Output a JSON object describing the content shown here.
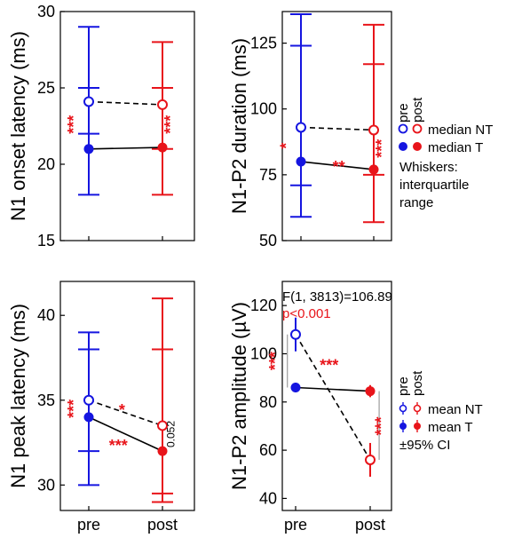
{
  "colors": {
    "pre": "#1515e0",
    "post": "#e8141a",
    "axis": "#000000",
    "significance": "#e8141a"
  },
  "chart_data": [
    {
      "id": "onset",
      "type": "line",
      "ylabel": "N1 onset latency (ms)",
      "ylim": [
        15,
        30
      ],
      "yticks": [
        15,
        20,
        25,
        30
      ],
      "categories": [
        "pre",
        "post"
      ],
      "show_xticklabels": false,
      "series": [
        {
          "name": "median NT",
          "values": [
            24.1,
            23.9
          ],
          "line": "dashed",
          "marker": "open"
        },
        {
          "name": "median T",
          "values": [
            21.0,
            21.1
          ],
          "line": "solid",
          "marker": "filled"
        }
      ],
      "whiskers": [
        {
          "cat": 0,
          "upper": [
            25.0,
            29.0
          ],
          "lower": [
            22.0,
            18.0
          ]
        },
        {
          "cat": 1,
          "upper": [
            25.0,
            28.0
          ],
          "lower": [
            21.0,
            18.0
          ]
        }
      ],
      "annotations": [
        {
          "text": "***",
          "x": -0.13,
          "y": 22.6,
          "rotate": -90,
          "size": 18
        },
        {
          "text": "***",
          "x": 1.18,
          "y": 22.6,
          "rotate": -90,
          "size": 18
        }
      ]
    },
    {
      "id": "duration",
      "type": "line",
      "ylabel": "N1-P2 duration (ms)",
      "ylim": [
        50,
        137
      ],
      "yticks": [
        50,
        75,
        100,
        125
      ],
      "categories": [
        "pre",
        "post"
      ],
      "show_xticklabels": false,
      "series": [
        {
          "name": "median NT",
          "values": [
            93,
            92
          ],
          "line": "dashed",
          "marker": "open"
        },
        {
          "name": "median T",
          "values": [
            80,
            77
          ],
          "line": "solid",
          "marker": "filled"
        }
      ],
      "whiskers": [
        {
          "cat": 0,
          "upper": [
            124,
            136
          ],
          "lower": [
            71,
            59
          ]
        },
        {
          "cat": 1,
          "upper": [
            117,
            132
          ],
          "lower": [
            75,
            57
          ]
        }
      ],
      "annotations": [
        {
          "text": "*",
          "x": -0.13,
          "y": 86,
          "rotate": -90,
          "size": 18
        },
        {
          "text": "**",
          "x": 0.52,
          "y": 76,
          "rotate": 0,
          "size": 18
        },
        {
          "text": "***",
          "x": 1.18,
          "y": 85,
          "rotate": -90,
          "size": 18
        }
      ]
    },
    {
      "id": "peak",
      "type": "line",
      "ylabel": "N1 peak latency (ms)",
      "ylim": [
        28.5,
        42
      ],
      "yticks": [
        30,
        35,
        40
      ],
      "categories": [
        "pre",
        "post"
      ],
      "show_xticklabels": true,
      "series": [
        {
          "name": "median NT",
          "values": [
            35.0,
            33.5
          ],
          "line": "dashed",
          "marker": "open"
        },
        {
          "name": "median T",
          "values": [
            34.0,
            32.0
          ],
          "line": "solid",
          "marker": "filled"
        }
      ],
      "whiskers": [
        {
          "cat": 0,
          "upper": [
            38.0,
            39.0
          ],
          "lower": [
            32.0,
            30.0
          ]
        },
        {
          "cat": 1,
          "upper": [
            38.0,
            41.0
          ],
          "lower": [
            29.5,
            29.0
          ]
        }
      ],
      "annotations": [
        {
          "text": "***",
          "x": -0.13,
          "y": 34.5,
          "rotate": -90,
          "size": 18
        },
        {
          "text": "*",
          "x": 0.45,
          "y": 34.1,
          "rotate": 0,
          "size": 18
        },
        {
          "text": "***",
          "x": 0.4,
          "y": 32.0,
          "rotate": 0,
          "size": 18
        },
        {
          "text": "0.052",
          "x": 1.16,
          "y": 33.0,
          "rotate": -90,
          "size": 12,
          "black": true
        }
      ]
    },
    {
      "id": "amplitude",
      "type": "line",
      "ylabel": "N1-P2 amplitude (µV)",
      "ylim": [
        35,
        130
      ],
      "yticks": [
        40,
        60,
        80,
        100,
        120
      ],
      "categories": [
        "pre",
        "post"
      ],
      "show_xticklabels": true,
      "series": [
        {
          "name": "mean NT",
          "values": [
            108,
            56
          ],
          "line": "dashed",
          "marker": "open"
        },
        {
          "name": "mean T",
          "values": [
            86,
            84.5
          ],
          "line": "solid",
          "marker": "filled"
        }
      ],
      "ci": [
        {
          "cat": 0,
          "series": 0,
          "low": 101,
          "high": 115
        },
        {
          "cat": 0,
          "series": 1,
          "low": 84,
          "high": 88
        },
        {
          "cat": 1,
          "series": 0,
          "low": 49,
          "high": 63
        },
        {
          "cat": 1,
          "series": 1,
          "low": 82,
          "high": 87
        }
      ],
      "brackets": [
        {
          "x": -0.11,
          "y1": 86,
          "y2": 108
        },
        {
          "x": 1.12,
          "y1": 56,
          "y2": 84.5
        }
      ],
      "stat_label": "F(1, 3813)=106.89",
      "p_label": "p<0.001",
      "annotations": [
        {
          "text": "***",
          "x": -0.2,
          "y": 97,
          "rotate": -90,
          "size": 18
        },
        {
          "text": "***",
          "x": 0.45,
          "y": 93,
          "rotate": 0,
          "size": 18
        },
        {
          "text": "***",
          "x": 1.22,
          "y": 70,
          "rotate": -90,
          "size": 18
        }
      ]
    }
  ],
  "legend_top": {
    "pre": "pre",
    "post": "post",
    "entries": [
      "median NT",
      "median T"
    ],
    "note_lines": [
      "Whiskers:",
      "interquartile",
      "range"
    ]
  },
  "legend_bottom": {
    "pre": "pre",
    "post": "post",
    "entries": [
      "mean NT",
      "mean T"
    ],
    "note_lines": [
      "±95% CI"
    ]
  }
}
